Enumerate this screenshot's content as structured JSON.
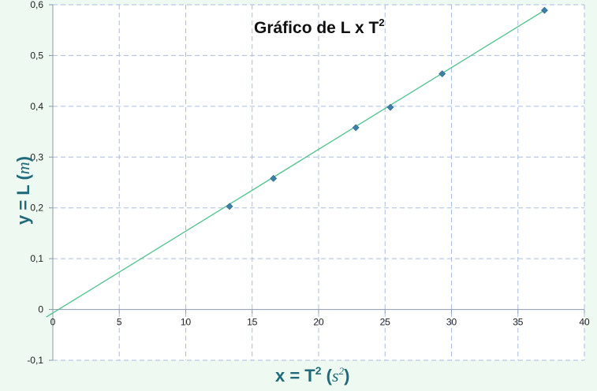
{
  "chart_data": {
    "type": "scatter",
    "title": "Gráfico de L x T",
    "title_superscript": "2",
    "xlabel_main": "x = T",
    "xlabel_sup": "2",
    "xlabel_unit_open": " (",
    "xlabel_unit": "s",
    "xlabel_unit_sup": "2",
    "xlabel_unit_close": ")",
    "ylabel_main": "y = L  (",
    "ylabel_unit": "m",
    "ylabel_unit_close": ")",
    "xlim": [
      0,
      40
    ],
    "ylim": [
      -0.1,
      0.6
    ],
    "x_ticks": [
      0,
      5,
      10,
      15,
      20,
      25,
      30,
      35,
      40
    ],
    "x_tick_labels": [
      "0",
      "5",
      "10",
      "15",
      "20",
      "25",
      "30",
      "35",
      "40"
    ],
    "y_ticks": [
      -0.1,
      0,
      0.1,
      0.2,
      0.3,
      0.4,
      0.5,
      0.6
    ],
    "y_tick_labels": [
      "-0,1",
      "0",
      "0,1",
      "0,2",
      "0,3",
      "0,4",
      "0,5",
      "0,6"
    ],
    "grid": true,
    "series": [
      {
        "marker_color": "#3d7fa6",
        "points": [
          {
            "x": 13.3,
            "y": 0.203
          },
          {
            "x": 16.6,
            "y": 0.258
          },
          {
            "x": 22.8,
            "y": 0.358
          },
          {
            "x": 25.4,
            "y": 0.398
          },
          {
            "x": 29.3,
            "y": 0.464
          },
          {
            "x": 37.0,
            "y": 0.589
          }
        ]
      }
    ],
    "trendline": {
      "color": "#4cc28a",
      "x_start": -0.5,
      "y_start": -0.015,
      "x_end": 37.0,
      "y_end": 0.589
    },
    "colors": {
      "background": "#eef9f1",
      "plot_background": "#ffffff",
      "grid": "#a9bde0",
      "axis_title": "#1f6b7a"
    }
  }
}
